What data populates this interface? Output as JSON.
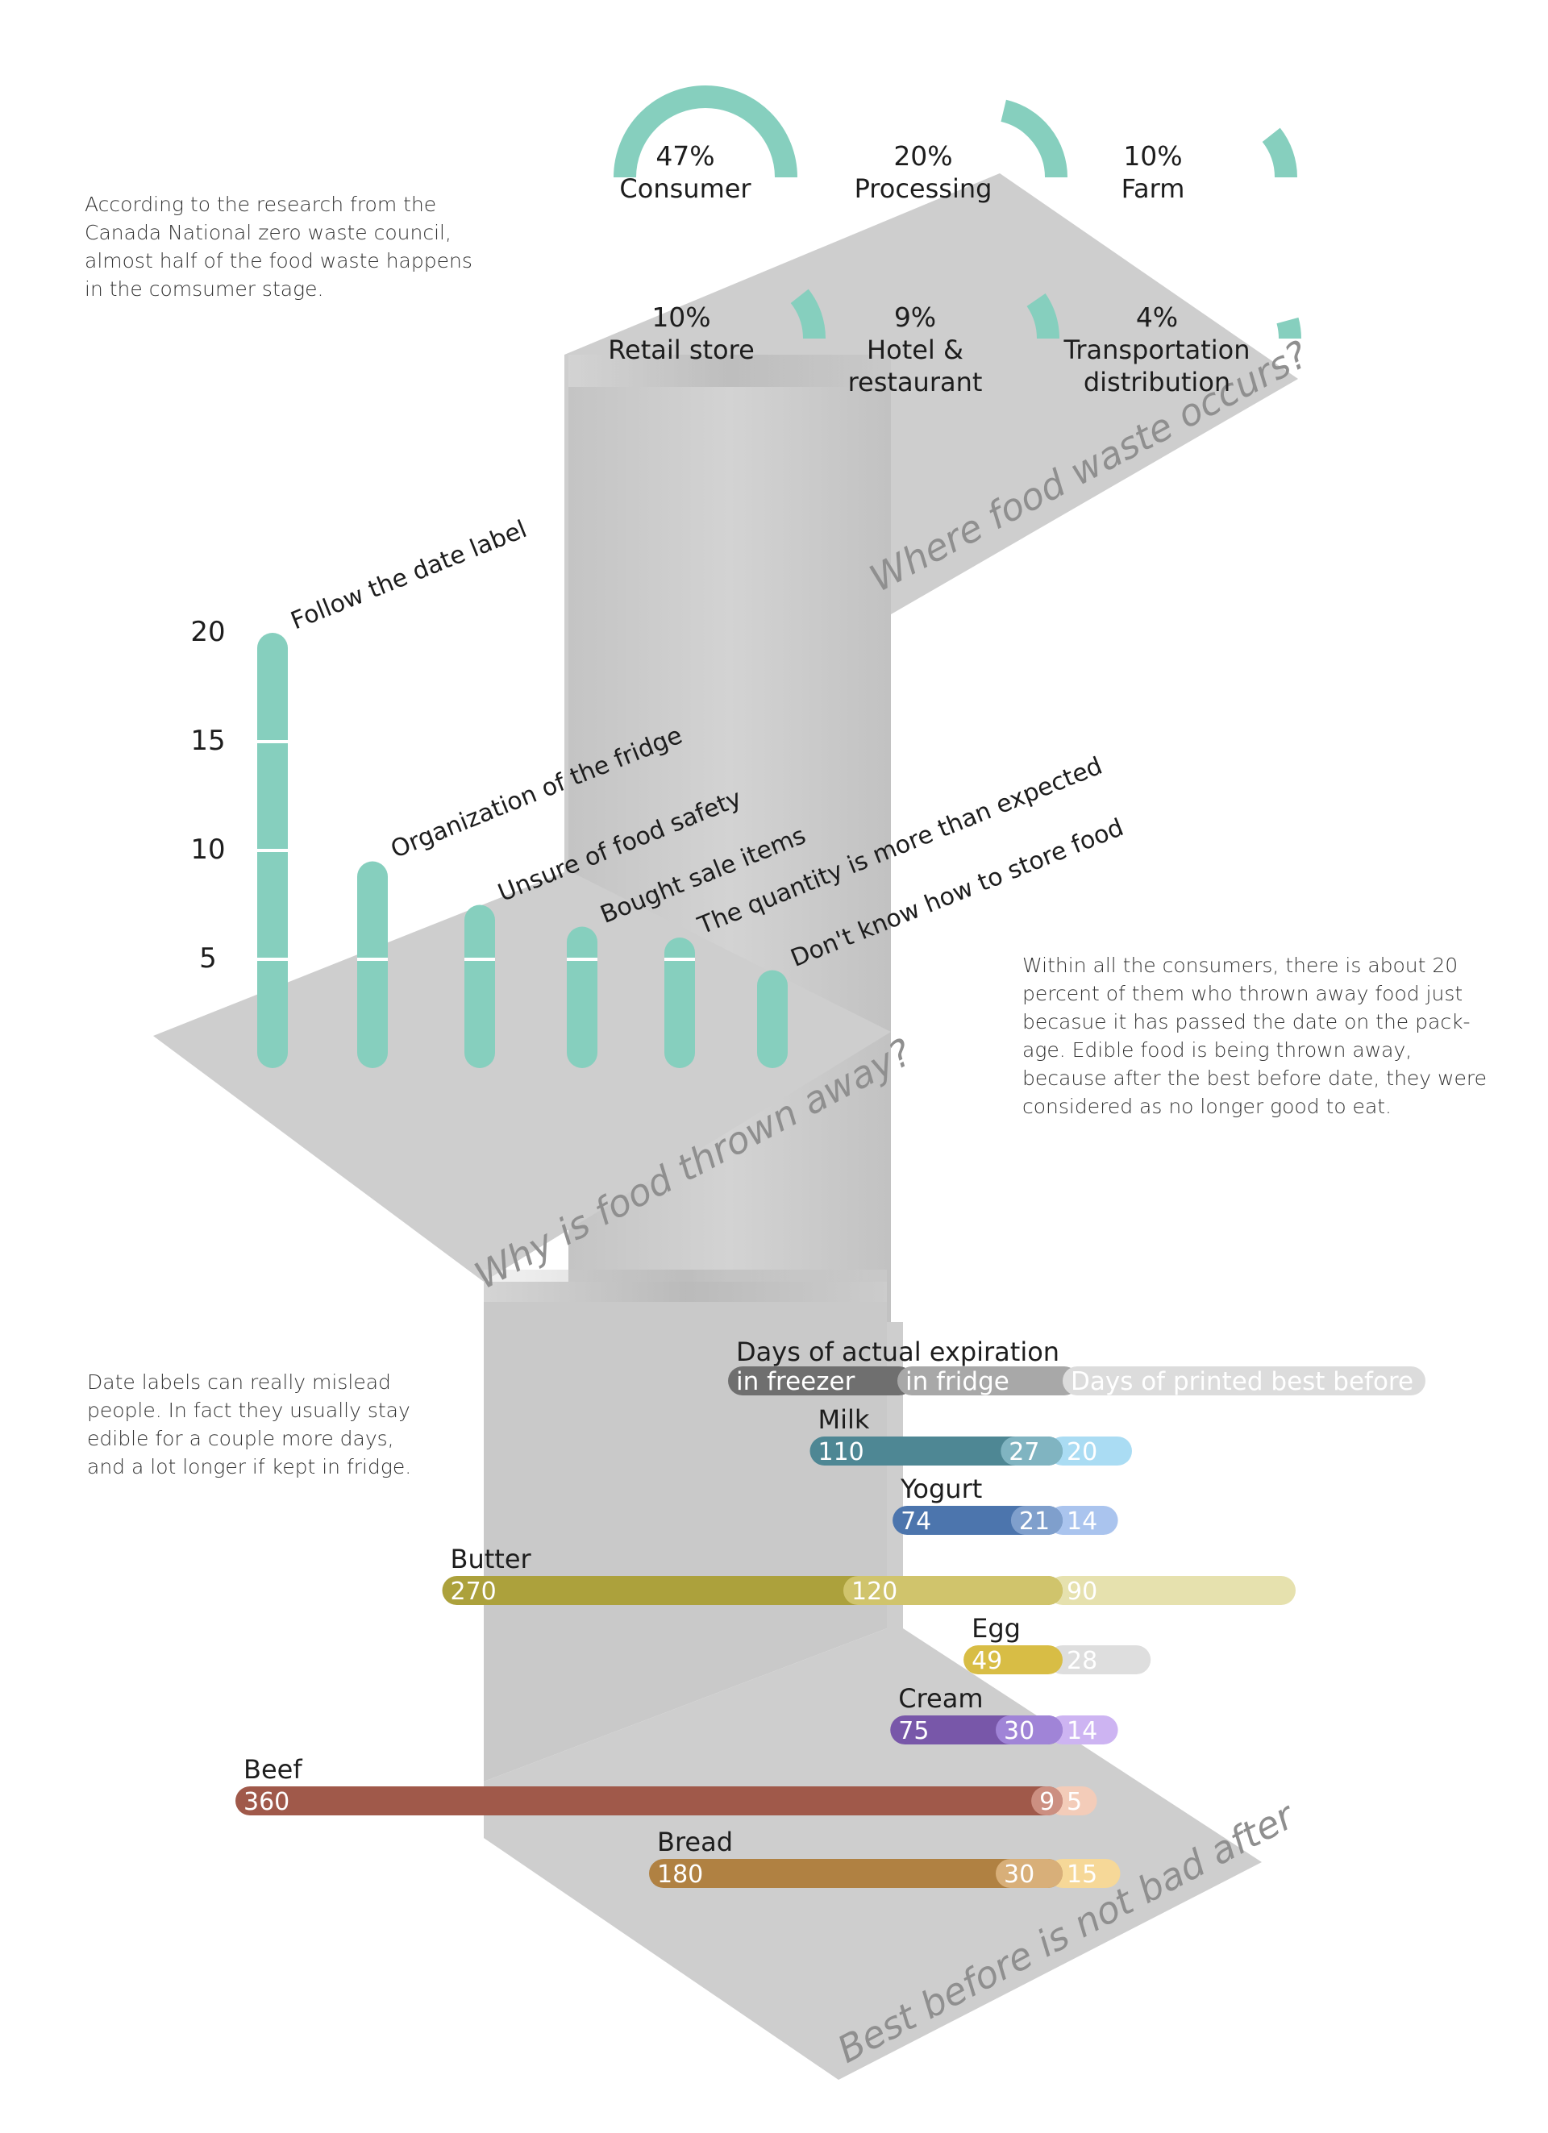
{
  "texts": {
    "intro_lines": [
      "According to the research from the",
      "Canada National zero waste council,",
      "almost half of the food waste happens",
      "in the comsumer stage."
    ],
    "consumers_lines": [
      "Within all the consumers, there is about 20",
      "percent of them who thrown away food just",
      "becasue it has passed the date on the pack-",
      "age. Edible food is being thrown away,",
      "because after the best before date, they were",
      "considered as no longer good to eat."
    ],
    "mislead_lines": [
      "Date labels can really mislead",
      "people. In fact they usually stay",
      "edible for a couple more days,",
      "and a lot longer if kept in fridge."
    ],
    "q1": "Where food waste occurs?",
    "q2": "Why is food  thrown away?",
    "q3": "Best before is not bad after"
  },
  "colors": {
    "accent": "#86cfbe",
    "ribbon": "#cecece",
    "ribbon_dark": "#b4b4b4",
    "question_text": "#8f8f8f"
  },
  "chart_data": [
    {
      "type": "pie",
      "title": "",
      "slices": [
        {
          "label": "47%",
          "name": "Consumer",
          "value": 47
        },
        {
          "label": "20%",
          "name": "Processing",
          "value": 20
        },
        {
          "label": "10%",
          "name": "Farm",
          "value": 10
        },
        {
          "label": "10%",
          "name": "Retail store",
          "value": 10
        },
        {
          "label": "9%",
          "name_lines": [
            "Hotel &",
            "restaurant"
          ],
          "value": 9
        },
        {
          "label": "4%",
          "name_lines": [
            "Transportation",
            "distribution"
          ],
          "value": 4
        }
      ]
    },
    {
      "type": "bar",
      "title": "",
      "categories": [
        "Follow the date label",
        "Organization of the fridge",
        "Unsure of food safety",
        "Bought sale items",
        "The quantity is more than expected",
        "Don't know how to store food"
      ],
      "values": [
        20,
        9.5,
        7.5,
        6.5,
        6,
        4.5
      ],
      "yticks": [
        "5",
        "10",
        "15",
        "20"
      ],
      "ylim": [
        0,
        20
      ]
    },
    {
      "type": "bar",
      "title": "Days of actual expiration",
      "legend": [
        "in freezer",
        "in fridge",
        "Days of printed best before"
      ],
      "legend_colors": [
        "#6f6f6f",
        "#a8a8a8",
        "#dcdcdc"
      ],
      "items": [
        {
          "name": "Milk",
          "freezer": 110,
          "fridge": 27,
          "best_before": 20,
          "colors": [
            "#4e8794",
            "#80b4c1",
            "#aadcf3"
          ]
        },
        {
          "name": "Yogurt",
          "freezer": 74,
          "fridge": 21,
          "best_before": 14,
          "colors": [
            "#4c75ad",
            "#7f9fcc",
            "#aac4ee"
          ]
        },
        {
          "name": "Butter",
          "freezer": 270,
          "fridge": 120,
          "best_before": 90,
          "colors": [
            "#aca13c",
            "#d0c46c",
            "#e6e1ae"
          ]
        },
        {
          "name": "Egg",
          "freezer": null,
          "fridge": 49,
          "best_before": 28,
          "colors": [
            "#d8bd45",
            "#d8bd45",
            "#dedede"
          ]
        },
        {
          "name": "Cream",
          "freezer": 75,
          "fridge": 30,
          "best_before": 14,
          "colors": [
            "#7857a9",
            "#a084d7",
            "#cdb4f2"
          ]
        },
        {
          "name": "Beef",
          "freezer": 360,
          "fridge": 9,
          "best_before": 5,
          "colors": [
            "#a0594a",
            "#cc8f81",
            "#f3ccb9"
          ]
        },
        {
          "name": "Bread",
          "freezer": 180,
          "fridge": 30,
          "best_before": 15,
          "colors": [
            "#b08142",
            "#d8af79",
            "#f6d898"
          ]
        }
      ]
    }
  ]
}
